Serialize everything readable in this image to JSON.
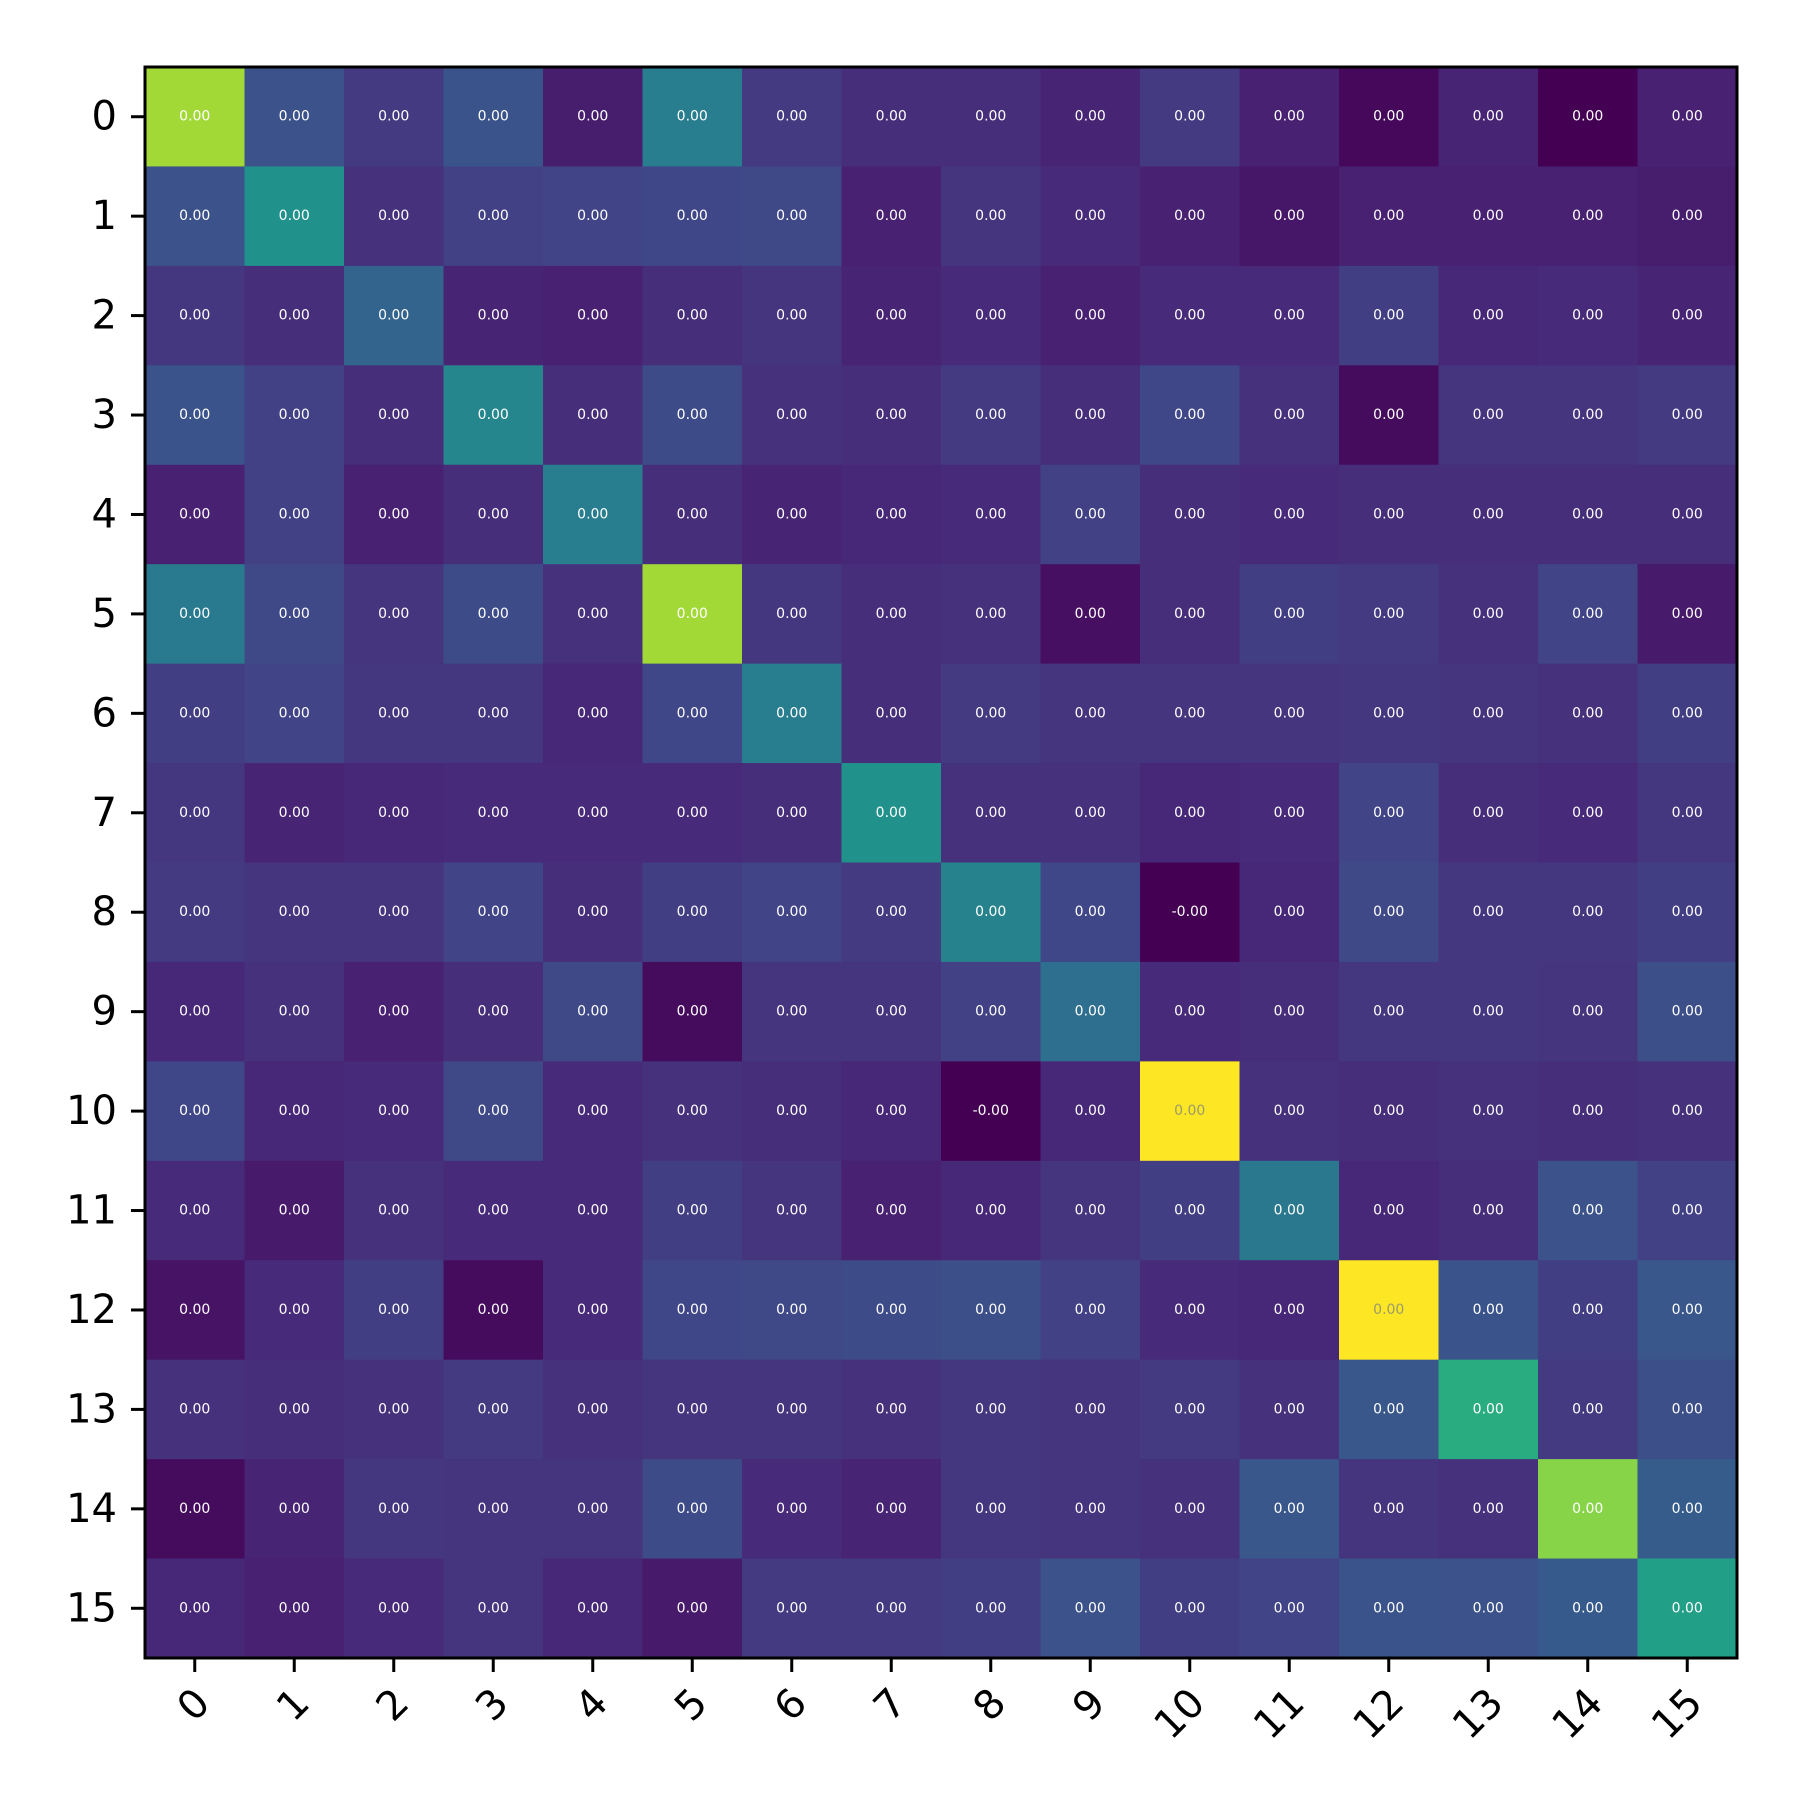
{
  "chart_data": {
    "type": "heatmap",
    "colormap": "viridis",
    "x_categories": [
      "0",
      "1",
      "2",
      "3",
      "4",
      "5",
      "6",
      "7",
      "8",
      "9",
      "10",
      "11",
      "12",
      "13",
      "14",
      "15"
    ],
    "y_categories": [
      "0",
      "1",
      "2",
      "3",
      "4",
      "5",
      "6",
      "7",
      "8",
      "9",
      "10",
      "11",
      "12",
      "13",
      "14",
      "15"
    ],
    "intensity": [
      [
        0.86,
        0.25,
        0.17,
        0.26,
        0.08,
        0.42,
        0.17,
        0.13,
        0.13,
        0.1,
        0.17,
        0.09,
        0.02,
        0.1,
        0.0,
        0.09
      ],
      [
        0.25,
        0.5,
        0.14,
        0.19,
        0.2,
        0.21,
        0.22,
        0.09,
        0.15,
        0.12,
        0.09,
        0.06,
        0.09,
        0.09,
        0.09,
        0.08
      ],
      [
        0.16,
        0.13,
        0.32,
        0.1,
        0.09,
        0.13,
        0.15,
        0.1,
        0.12,
        0.09,
        0.12,
        0.12,
        0.18,
        0.11,
        0.12,
        0.1
      ],
      [
        0.26,
        0.19,
        0.13,
        0.46,
        0.13,
        0.23,
        0.14,
        0.13,
        0.17,
        0.13,
        0.21,
        0.14,
        0.03,
        0.15,
        0.15,
        0.17
      ],
      [
        0.09,
        0.19,
        0.09,
        0.13,
        0.42,
        0.13,
        0.1,
        0.11,
        0.12,
        0.19,
        0.13,
        0.12,
        0.13,
        0.13,
        0.13,
        0.13
      ],
      [
        0.41,
        0.22,
        0.15,
        0.23,
        0.14,
        0.86,
        0.16,
        0.13,
        0.14,
        0.04,
        0.13,
        0.18,
        0.17,
        0.14,
        0.2,
        0.07
      ],
      [
        0.18,
        0.2,
        0.16,
        0.16,
        0.11,
        0.21,
        0.42,
        0.13,
        0.17,
        0.15,
        0.15,
        0.15,
        0.16,
        0.15,
        0.14,
        0.18
      ],
      [
        0.16,
        0.1,
        0.11,
        0.12,
        0.12,
        0.12,
        0.13,
        0.5,
        0.14,
        0.14,
        0.11,
        0.12,
        0.2,
        0.13,
        0.12,
        0.16
      ],
      [
        0.17,
        0.15,
        0.15,
        0.2,
        0.13,
        0.18,
        0.2,
        0.17,
        0.44,
        0.21,
        0.0,
        0.11,
        0.22,
        0.16,
        0.16,
        0.18
      ],
      [
        0.11,
        0.14,
        0.09,
        0.13,
        0.22,
        0.03,
        0.15,
        0.15,
        0.19,
        0.36,
        0.12,
        0.13,
        0.16,
        0.16,
        0.15,
        0.24
      ],
      [
        0.21,
        0.11,
        0.12,
        0.22,
        0.12,
        0.14,
        0.13,
        0.11,
        0.0,
        0.11,
        1.0,
        0.14,
        0.13,
        0.14,
        0.13,
        0.14
      ],
      [
        0.12,
        0.07,
        0.14,
        0.12,
        0.12,
        0.18,
        0.15,
        0.09,
        0.11,
        0.15,
        0.18,
        0.4,
        0.11,
        0.13,
        0.25,
        0.19
      ],
      [
        0.05,
        0.12,
        0.18,
        0.03,
        0.12,
        0.21,
        0.22,
        0.23,
        0.24,
        0.19,
        0.12,
        0.11,
        1.0,
        0.26,
        0.18,
        0.27
      ],
      [
        0.14,
        0.13,
        0.14,
        0.17,
        0.14,
        0.15,
        0.15,
        0.14,
        0.16,
        0.15,
        0.17,
        0.14,
        0.27,
        0.62,
        0.17,
        0.24
      ],
      [
        0.03,
        0.1,
        0.16,
        0.15,
        0.15,
        0.23,
        0.12,
        0.1,
        0.16,
        0.15,
        0.14,
        0.27,
        0.15,
        0.14,
        0.82,
        0.29
      ],
      [
        0.11,
        0.09,
        0.12,
        0.15,
        0.11,
        0.07,
        0.17,
        0.17,
        0.18,
        0.25,
        0.18,
        0.2,
        0.26,
        0.25,
        0.28,
        0.56
      ]
    ],
    "cell_labels": [
      [
        "0.00",
        "0.00",
        "0.00",
        "0.00",
        "0.00",
        "0.00",
        "0.00",
        "0.00",
        "0.00",
        "0.00",
        "0.00",
        "0.00",
        "0.00",
        "0.00",
        "0.00",
        "0.00"
      ],
      [
        "0.00",
        "0.00",
        "0.00",
        "0.00",
        "0.00",
        "0.00",
        "0.00",
        "0.00",
        "0.00",
        "0.00",
        "0.00",
        "0.00",
        "0.00",
        "0.00",
        "0.00",
        "0.00"
      ],
      [
        "0.00",
        "0.00",
        "0.00",
        "0.00",
        "0.00",
        "0.00",
        "0.00",
        "0.00",
        "0.00",
        "0.00",
        "0.00",
        "0.00",
        "0.00",
        "0.00",
        "0.00",
        "0.00"
      ],
      [
        "0.00",
        "0.00",
        "0.00",
        "0.00",
        "0.00",
        "0.00",
        "0.00",
        "0.00",
        "0.00",
        "0.00",
        "0.00",
        "0.00",
        "0.00",
        "0.00",
        "0.00",
        "0.00"
      ],
      [
        "0.00",
        "0.00",
        "0.00",
        "0.00",
        "0.00",
        "0.00",
        "0.00",
        "0.00",
        "0.00",
        "0.00",
        "0.00",
        "0.00",
        "0.00",
        "0.00",
        "0.00",
        "0.00"
      ],
      [
        "0.00",
        "0.00",
        "0.00",
        "0.00",
        "0.00",
        "0.00",
        "0.00",
        "0.00",
        "0.00",
        "0.00",
        "0.00",
        "0.00",
        "0.00",
        "0.00",
        "0.00",
        "0.00"
      ],
      [
        "0.00",
        "0.00",
        "0.00",
        "0.00",
        "0.00",
        "0.00",
        "0.00",
        "0.00",
        "0.00",
        "0.00",
        "0.00",
        "0.00",
        "0.00",
        "0.00",
        "0.00",
        "0.00"
      ],
      [
        "0.00",
        "0.00",
        "0.00",
        "0.00",
        "0.00",
        "0.00",
        "0.00",
        "0.00",
        "0.00",
        "0.00",
        "0.00",
        "0.00",
        "0.00",
        "0.00",
        "0.00",
        "0.00"
      ],
      [
        "0.00",
        "0.00",
        "0.00",
        "0.00",
        "0.00",
        "0.00",
        "0.00",
        "0.00",
        "0.00",
        "0.00",
        "-0.00",
        "0.00",
        "0.00",
        "0.00",
        "0.00",
        "0.00"
      ],
      [
        "0.00",
        "0.00",
        "0.00",
        "0.00",
        "0.00",
        "0.00",
        "0.00",
        "0.00",
        "0.00",
        "0.00",
        "0.00",
        "0.00",
        "0.00",
        "0.00",
        "0.00",
        "0.00"
      ],
      [
        "0.00",
        "0.00",
        "0.00",
        "0.00",
        "0.00",
        "0.00",
        "0.00",
        "0.00",
        "-0.00",
        "0.00",
        "0.00",
        "0.00",
        "0.00",
        "0.00",
        "0.00",
        "0.00"
      ],
      [
        "0.00",
        "0.00",
        "0.00",
        "0.00",
        "0.00",
        "0.00",
        "0.00",
        "0.00",
        "0.00",
        "0.00",
        "0.00",
        "0.00",
        "0.00",
        "0.00",
        "0.00",
        "0.00"
      ],
      [
        "0.00",
        "0.00",
        "0.00",
        "0.00",
        "0.00",
        "0.00",
        "0.00",
        "0.00",
        "0.00",
        "0.00",
        "0.00",
        "0.00",
        "0.00",
        "0.00",
        "0.00",
        "0.00"
      ],
      [
        "0.00",
        "0.00",
        "0.00",
        "0.00",
        "0.00",
        "0.00",
        "0.00",
        "0.00",
        "0.00",
        "0.00",
        "0.00",
        "0.00",
        "0.00",
        "0.00",
        "0.00",
        "0.00"
      ],
      [
        "0.00",
        "0.00",
        "0.00",
        "0.00",
        "0.00",
        "0.00",
        "0.00",
        "0.00",
        "0.00",
        "0.00",
        "0.00",
        "0.00",
        "0.00",
        "0.00",
        "0.00",
        "0.00"
      ],
      [
        "0.00",
        "0.00",
        "0.00",
        "0.00",
        "0.00",
        "0.00",
        "0.00",
        "0.00",
        "0.00",
        "0.00",
        "0.00",
        "0.00",
        "0.00",
        "0.00",
        "0.00",
        "0.00"
      ]
    ],
    "title": "",
    "xlabel": "",
    "ylabel": "",
    "x_tick_rotation": "45deg",
    "colorbar": false,
    "grid": false
  }
}
